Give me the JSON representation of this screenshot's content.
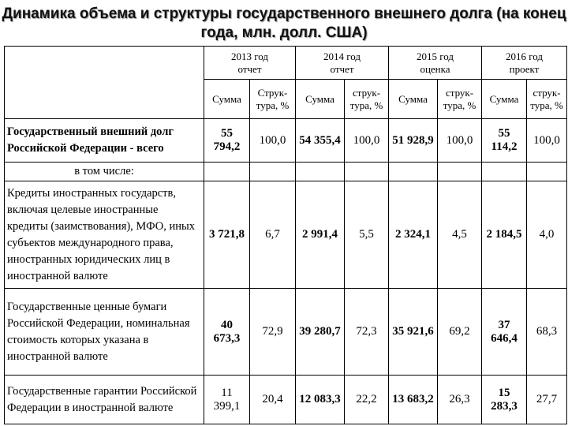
{
  "title": "Динамика объема и структуры государственного внешнего долга (на конец года, млн. долл. США)",
  "years": [
    {
      "year": "2013 год",
      "status": "отчет"
    },
    {
      "year": "2014 год",
      "status": "отчет"
    },
    {
      "year": "2015 год",
      "status": "оценка"
    },
    {
      "year": "2016 год",
      "status": "проект"
    }
  ],
  "subheaders": [
    {
      "sum": "Сумма",
      "struct": "Струк- тура, %"
    },
    {
      "sum": "Сумма",
      "struct": "струк- тура, %"
    },
    {
      "sum": "Сумма",
      "struct": "струк- тура, %"
    },
    {
      "sum": "Сумма",
      "struct": "струк- тура, %"
    }
  ],
  "in_that_number": "в том числе:",
  "rows": [
    {
      "label": "Государственный внешний долг Российской Федерации - всего",
      "values": [
        {
          "sum": "55 794,2",
          "struct": "100,0"
        },
        {
          "sum": "54 355,4",
          "struct": "100,0"
        },
        {
          "sum": "51 928,9",
          "struct": "100,0"
        },
        {
          "sum": "55 114,2",
          "struct": "100,0"
        }
      ]
    },
    {
      "label": "Кредиты иностранных государств, включая целевые иностранные кредиты (заимствования), МФО, иных субъектов международного права, иностранных юридических лиц в иностранной валюте",
      "values": [
        {
          "sum": "3 721,8",
          "struct": "6,7"
        },
        {
          "sum": "2 991,4",
          "struct": "5,5"
        },
        {
          "sum": "2 324,1",
          "struct": "4,5"
        },
        {
          "sum": "2 184,5",
          "struct": "4,0"
        }
      ]
    },
    {
      "label": "Государственные ценные бумаги Российской Федерации, номинальная стоимость которых указана в иностранной валюте",
      "values": [
        {
          "sum": "40 673,3",
          "struct": "72,9"
        },
        {
          "sum": "39 280,7",
          "struct": "72,3"
        },
        {
          "sum": "35 921,6",
          "struct": "69,2"
        },
        {
          "sum": "37 646,4",
          "struct": "68,3"
        }
      ]
    },
    {
      "label": "Государственные гарантии Российской Федерации в иностранной валюте",
      "values": [
        {
          "sum": "11 399,1",
          "struct": "20,4"
        },
        {
          "sum": "12 083,3",
          "struct": "22,2"
        },
        {
          "sum": "13 683,2",
          "struct": "26,3"
        },
        {
          "sum": "15 283,3",
          "struct": "27,7"
        }
      ]
    }
  ]
}
